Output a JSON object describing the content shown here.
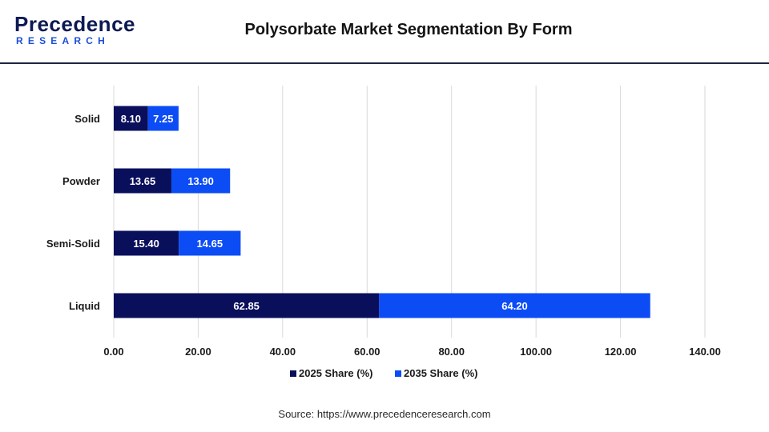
{
  "header": {
    "logo_top": "Precedence",
    "logo_bottom": "RESEARCH",
    "title": "Polysorbate Market Segmentation By Form"
  },
  "chart_data": {
    "type": "bar",
    "orientation": "horizontal",
    "stacked": true,
    "categories": [
      "Solid",
      "Powder",
      "Semi-Solid",
      "Liquid"
    ],
    "series": [
      {
        "name": "2025 Share (%)",
        "values": [
          8.1,
          13.65,
          15.4,
          62.85
        ],
        "color": "#0a0f5c"
      },
      {
        "name": "2035 Share (%)",
        "values": [
          7.25,
          13.9,
          14.65,
          64.2
        ],
        "color": "#0b4cf5"
      }
    ],
    "xlim": [
      0,
      140
    ],
    "xticks": [
      "0.00",
      "20.00",
      "40.00",
      "60.00",
      "80.00",
      "100.00",
      "120.00",
      "140.00"
    ],
    "grid": true,
    "legend_position": "bottom"
  },
  "footer": {
    "source": "Source: https://www.precedenceresearch.com"
  }
}
